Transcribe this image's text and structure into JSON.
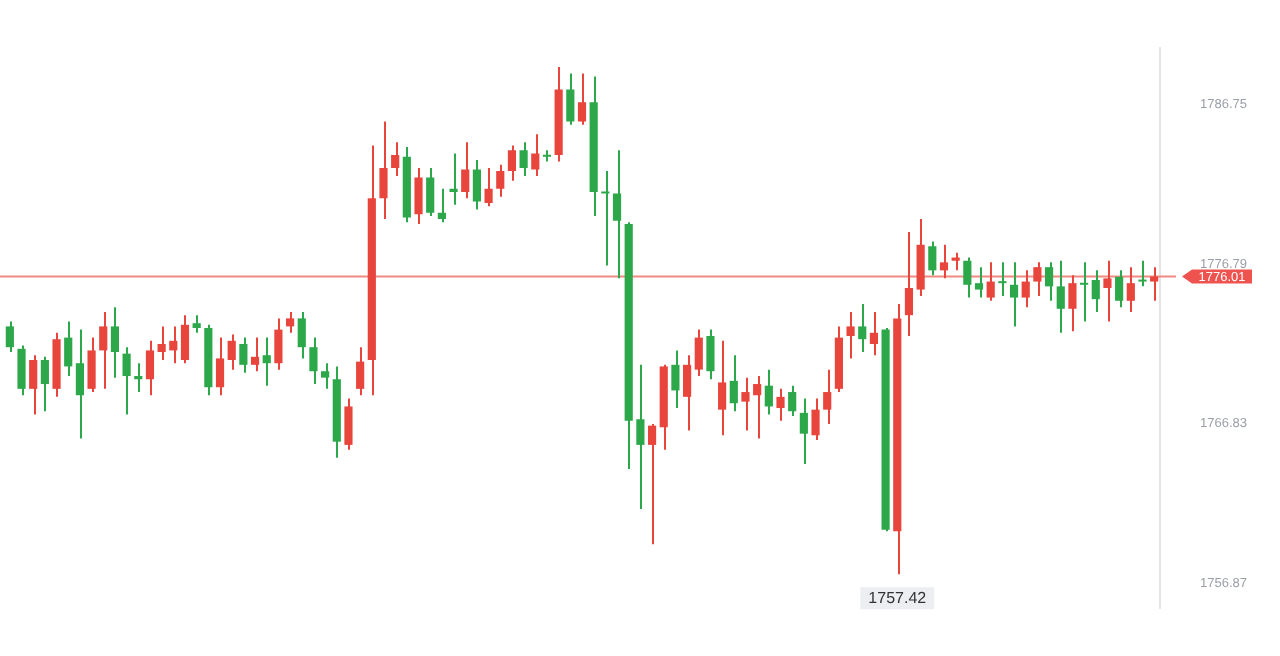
{
  "chart_data": {
    "type": "candlestick",
    "categories": [
      null,
      null,
      null,
      null,
      null,
      null,
      null,
      null,
      null,
      null,
      null,
      null,
      null,
      null,
      null,
      null,
      null,
      null,
      null,
      null,
      null,
      null,
      null,
      null,
      null,
      null,
      null,
      null,
      null,
      null,
      null,
      null,
      null,
      null,
      null,
      null,
      null,
      null,
      null,
      null,
      null,
      null,
      null,
      null,
      null,
      null,
      null,
      null,
      null,
      null,
      null,
      null,
      null,
      null,
      null,
      null,
      null,
      null,
      null,
      null,
      null,
      null,
      null,
      null,
      null,
      null,
      null,
      null,
      null,
      null,
      null,
      null,
      null,
      null,
      null,
      null,
      null,
      null,
      null,
      null,
      null,
      null,
      null,
      null,
      null,
      null,
      null,
      null,
      null,
      null,
      null,
      null,
      null,
      null,
      null,
      null,
      null,
      null,
      null
    ],
    "ohlc": [
      [
        1772.9,
        1773.2,
        1771.3,
        1771.6
      ],
      [
        1771.5,
        1771.7,
        1768.6,
        1769.0
      ],
      [
        1769.0,
        1771.1,
        1767.4,
        1770.8
      ],
      [
        1770.8,
        1771.0,
        1767.6,
        1769.3
      ],
      [
        1769.0,
        1772.5,
        1768.5,
        1772.1
      ],
      [
        1772.2,
        1773.2,
        1769.8,
        1770.4
      ],
      [
        1770.6,
        1772.7,
        1765.9,
        1768.6
      ],
      [
        1769.0,
        1772.2,
        1768.8,
        1771.4
      ],
      [
        1771.4,
        1773.8,
        1769.0,
        1772.9
      ],
      [
        1772.9,
        1774.1,
        1769.7,
        1771.3
      ],
      [
        1771.2,
        1771.6,
        1767.4,
        1769.8
      ],
      [
        1769.8,
        1770.6,
        1768.8,
        1769.6
      ],
      [
        1769.6,
        1772.0,
        1768.6,
        1771.4
      ],
      [
        1771.3,
        1772.9,
        1770.8,
        1771.8
      ],
      [
        1771.4,
        1772.9,
        1770.6,
        1772.0
      ],
      [
        1770.8,
        1773.6,
        1770.6,
        1773.0
      ],
      [
        1773.1,
        1773.6,
        1772.5,
        1772.8
      ],
      [
        1772.8,
        1773.0,
        1768.6,
        1769.1
      ],
      [
        1769.1,
        1772.2,
        1768.6,
        1770.9
      ],
      [
        1770.8,
        1772.4,
        1770.2,
        1772.0
      ],
      [
        1771.8,
        1772.2,
        1770.0,
        1770.5
      ],
      [
        1770.5,
        1772.2,
        1770.1,
        1771.0
      ],
      [
        1771.1,
        1772.2,
        1769.2,
        1770.6
      ],
      [
        1770.6,
        1773.4,
        1770.2,
        1772.7
      ],
      [
        1772.9,
        1773.8,
        1772.5,
        1773.4
      ],
      [
        1773.4,
        1773.8,
        1770.9,
        1771.6
      ],
      [
        1771.6,
        1772.2,
        1769.3,
        1770.1
      ],
      [
        1770.1,
        1770.6,
        1769.0,
        1769.7
      ],
      [
        1769.6,
        1770.4,
        1764.7,
        1765.7
      ],
      [
        1765.5,
        1768.4,
        1765.2,
        1767.9
      ],
      [
        1769.0,
        1771.6,
        1768.6,
        1770.7
      ],
      [
        1770.8,
        1784.2,
        1768.6,
        1780.9
      ],
      [
        1780.9,
        1785.7,
        1779.6,
        1782.8
      ],
      [
        1782.8,
        1784.4,
        1782.3,
        1783.6
      ],
      [
        1783.5,
        1784.1,
        1779.4,
        1779.7
      ],
      [
        1779.9,
        1782.8,
        1779.3,
        1782.2
      ],
      [
        1782.2,
        1782.8,
        1779.8,
        1780.0
      ],
      [
        1780.0,
        1781.5,
        1779.4,
        1779.6
      ],
      [
        1781.5,
        1783.7,
        1780.5,
        1781.3
      ],
      [
        1781.3,
        1784.4,
        1780.9,
        1782.7
      ],
      [
        1782.7,
        1783.3,
        1780.2,
        1780.7
      ],
      [
        1780.6,
        1782.8,
        1780.4,
        1781.5
      ],
      [
        1781.5,
        1783.0,
        1781.0,
        1782.6
      ],
      [
        1782.6,
        1784.2,
        1782.0,
        1783.9
      ],
      [
        1783.9,
        1784.4,
        1782.3,
        1782.8
      ],
      [
        1782.7,
        1784.9,
        1782.3,
        1783.7
      ],
      [
        1783.6,
        1783.9,
        1783.2,
        1783.5
      ],
      [
        1783.6,
        1789.1,
        1783.2,
        1787.7
      ],
      [
        1787.7,
        1788.7,
        1785.5,
        1785.7
      ],
      [
        1785.7,
        1788.7,
        1785.5,
        1786.9
      ],
      [
        1786.9,
        1788.5,
        1779.8,
        1781.3
      ],
      [
        1781.3,
        1782.6,
        1776.7,
        1781.2
      ],
      [
        1781.2,
        1783.9,
        1775.9,
        1779.5
      ],
      [
        1779.3,
        1779.4,
        1764.0,
        1767.0
      ],
      [
        1767.1,
        1770.5,
        1761.5,
        1765.5
      ],
      [
        1765.5,
        1766.8,
        1759.3,
        1766.7
      ],
      [
        1766.6,
        1770.5,
        1765.2,
        1770.4
      ],
      [
        1770.5,
        1771.4,
        1767.8,
        1768.9
      ],
      [
        1768.5,
        1771.1,
        1766.4,
        1770.5
      ],
      [
        1770.2,
        1772.7,
        1769.8,
        1772.2
      ],
      [
        1772.3,
        1772.7,
        1769.6,
        1770.1
      ],
      [
        1767.7,
        1772.0,
        1766.1,
        1769.4
      ],
      [
        1769.5,
        1771.1,
        1767.6,
        1768.1
      ],
      [
        1768.2,
        1769.7,
        1766.4,
        1768.8
      ],
      [
        1768.6,
        1769.8,
        1765.9,
        1769.3
      ],
      [
        1769.2,
        1770.2,
        1767.4,
        1767.9
      ],
      [
        1767.8,
        1769.0,
        1767.0,
        1768.5
      ],
      [
        1768.8,
        1769.2,
        1767.3,
        1767.6
      ],
      [
        1767.5,
        1768.4,
        1764.3,
        1766.2
      ],
      [
        1766.1,
        1768.4,
        1765.8,
        1767.7
      ],
      [
        1767.7,
        1770.2,
        1766.8,
        1768.8
      ],
      [
        1769.0,
        1772.9,
        1768.8,
        1772.2
      ],
      [
        1772.3,
        1773.8,
        1770.9,
        1772.9
      ],
      [
        1772.9,
        1774.3,
        1771.3,
        1772.1
      ],
      [
        1771.8,
        1773.8,
        1771.1,
        1772.5
      ],
      [
        1772.7,
        1772.8,
        1760.1,
        1760.2
      ],
      [
        1760.1,
        1774.3,
        1757.42,
        1773.4
      ],
      [
        1773.6,
        1778.8,
        1772.3,
        1775.3
      ],
      [
        1775.2,
        1779.6,
        1774.8,
        1778.0
      ],
      [
        1777.9,
        1778.2,
        1776.1,
        1776.4
      ],
      [
        1776.4,
        1778.0,
        1775.9,
        1776.9
      ],
      [
        1777.0,
        1777.5,
        1776.4,
        1777.2
      ],
      [
        1777.0,
        1777.2,
        1774.7,
        1775.5
      ],
      [
        1775.6,
        1776.6,
        1774.7,
        1775.2
      ],
      [
        1774.7,
        1776.9,
        1774.5,
        1775.7
      ],
      [
        1775.7,
        1776.9,
        1774.8,
        1775.6
      ],
      [
        1775.5,
        1776.9,
        1772.9,
        1774.7
      ],
      [
        1774.7,
        1776.4,
        1774.1,
        1775.7
      ],
      [
        1775.7,
        1776.9,
        1774.8,
        1776.6
      ],
      [
        1776.6,
        1776.9,
        1774.5,
        1775.4
      ],
      [
        1775.4,
        1777.0,
        1772.5,
        1774.0
      ],
      [
        1774.0,
        1776.1,
        1772.6,
        1775.6
      ],
      [
        1775.6,
        1776.9,
        1773.2,
        1775.5
      ],
      [
        1775.8,
        1776.4,
        1773.8,
        1774.6
      ],
      [
        1775.3,
        1777.0,
        1773.2,
        1775.9
      ],
      [
        1776.0,
        1776.4,
        1774.1,
        1774.5
      ],
      [
        1774.5,
        1776.6,
        1773.8,
        1775.6
      ],
      [
        1775.8,
        1777.0,
        1775.4,
        1775.7
      ],
      [
        1775.7,
        1776.6,
        1774.5,
        1776.01
      ]
    ],
    "colors": [
      "#2ca84a",
      "#2ca84a",
      "#e8453c",
      "#2ca84a",
      "#e8453c",
      "#2ca84a",
      "#2ca84a",
      "#e8453c",
      "#e8453c",
      "#2ca84a",
      "#2ca84a",
      "#2ca84a",
      "#e8453c",
      "#e8453c",
      "#e8453c",
      "#e8453c",
      "#2ca84a",
      "#2ca84a",
      "#e8453c",
      "#e8453c",
      "#2ca84a",
      "#e8453c",
      "#2ca84a",
      "#e8453c",
      "#e8453c",
      "#2ca84a",
      "#2ca84a",
      "#2ca84a",
      "#2ca84a",
      "#e8453c",
      "#e8453c",
      "#e8453c",
      "#e8453c",
      "#e8453c",
      "#2ca84a",
      "#e8453c",
      "#2ca84a",
      "#2ca84a",
      "#2ca84a",
      "#e8453c",
      "#2ca84a",
      "#e8453c",
      "#e8453c",
      "#e8453c",
      "#2ca84a",
      "#e8453c",
      "#2ca84a",
      "#e8453c",
      "#2ca84a",
      "#e8453c",
      "#2ca84a",
      "#2ca84a",
      "#2ca84a",
      "#2ca84a",
      "#2ca84a",
      "#e8453c",
      "#e8453c",
      "#2ca84a",
      "#e8453c",
      "#e8453c",
      "#2ca84a",
      "#e8453c",
      "#2ca84a",
      "#e8453c",
      "#e8453c",
      "#2ca84a",
      "#e8453c",
      "#2ca84a",
      "#2ca84a",
      "#e8453c",
      "#e8453c",
      "#e8453c",
      "#e8453c",
      "#2ca84a",
      "#e8453c",
      "#2ca84a",
      "#e8453c",
      "#e8453c",
      "#e8453c",
      "#2ca84a",
      "#e8453c",
      "#e8453c",
      "#2ca84a",
      "#2ca84a",
      "#e8453c",
      "#2ca84a",
      "#2ca84a",
      "#e8453c",
      "#e8453c",
      "#2ca84a",
      "#2ca84a",
      "#e8453c",
      "#2ca84a",
      "#2ca84a",
      "#e8453c",
      "#2ca84a",
      "#e8453c",
      "#2ca84a",
      "#e8453c"
    ],
    "ylim": [
      1755.3,
      1790.3
    ],
    "yticks": [
      1756.87,
      1766.83,
      1776.79,
      1786.75
    ],
    "ref_lines": [
      {
        "axis": "y",
        "value": 1776.01,
        "label": "1776.01",
        "color": "#f08a80"
      }
    ],
    "annotations": [
      {
        "text": "1757.42",
        "y": 1757.42
      }
    ],
    "grid": false,
    "legend": false
  }
}
